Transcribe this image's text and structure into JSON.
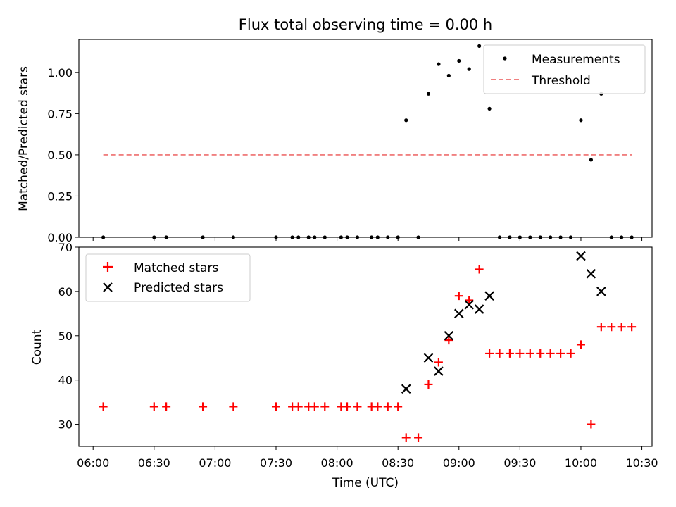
{
  "chart_data": [
    {
      "type": "scatter",
      "title": "Flux total observing time = 0.00 h",
      "xlabel": "",
      "ylabel": "Matched/Predicted stars",
      "xlim": [
        "05:53",
        "10:35"
      ],
      "ylim": [
        0,
        1.2
      ],
      "yticks": [
        0.0,
        0.25,
        0.5,
        0.75,
        1.0
      ],
      "ytick_labels": [
        "0.00",
        "0.25",
        "0.50",
        "0.75",
        "1.00"
      ],
      "xticks": [
        "06:00",
        "06:30",
        "07:00",
        "07:30",
        "08:00",
        "08:30",
        "09:00",
        "09:30",
        "10:00",
        "10:30"
      ],
      "legend_position": "top-right",
      "series": [
        {
          "name": "Measurements",
          "marker": "dot",
          "color": "#000000",
          "points": [
            [
              "06:05",
              0
            ],
            [
              "06:30",
              0
            ],
            [
              "06:36",
              0
            ],
            [
              "06:54",
              0
            ],
            [
              "07:09",
              0
            ],
            [
              "07:30",
              0
            ],
            [
              "07:38",
              0
            ],
            [
              "07:41",
              0
            ],
            [
              "07:46",
              0
            ],
            [
              "07:49",
              0
            ],
            [
              "07:54",
              0
            ],
            [
              "08:02",
              0
            ],
            [
              "08:05",
              0
            ],
            [
              "08:10",
              0
            ],
            [
              "08:17",
              0
            ],
            [
              "08:20",
              0
            ],
            [
              "08:25",
              0
            ],
            [
              "08:30",
              0
            ],
            [
              "08:34",
              0.71
            ],
            [
              "08:40",
              0
            ],
            [
              "08:45",
              0.87
            ],
            [
              "08:50",
              1.05
            ],
            [
              "08:55",
              0.98
            ],
            [
              "09:00",
              1.07
            ],
            [
              "09:05",
              1.02
            ],
            [
              "09:10",
              1.16
            ],
            [
              "09:15",
              0.78
            ],
            [
              "09:20",
              0
            ],
            [
              "09:25",
              0
            ],
            [
              "09:30",
              0
            ],
            [
              "09:35",
              0
            ],
            [
              "09:40",
              0
            ],
            [
              "09:45",
              0
            ],
            [
              "09:50",
              0
            ],
            [
              "09:55",
              0
            ],
            [
              "10:00",
              0.71
            ],
            [
              "10:05",
              0.47
            ],
            [
              "10:10",
              0.87
            ],
            [
              "10:15",
              0
            ],
            [
              "10:20",
              0
            ],
            [
              "10:25",
              0
            ]
          ]
        },
        {
          "name": "Threshold",
          "line_style": "dashed",
          "color": "#f08080",
          "points": [
            [
              "06:05",
              0.5
            ],
            [
              "10:25",
              0.5
            ]
          ]
        }
      ]
    },
    {
      "type": "scatter",
      "title": "",
      "xlabel": "Time (UTC)",
      "ylabel": "Count",
      "xlim": [
        "05:53",
        "10:35"
      ],
      "ylim": [
        25,
        70
      ],
      "yticks": [
        30,
        40,
        50,
        60,
        70
      ],
      "ytick_labels": [
        "30",
        "40",
        "50",
        "60",
        "70"
      ],
      "xticks": [
        "06:00",
        "06:30",
        "07:00",
        "07:30",
        "08:00",
        "08:30",
        "09:00",
        "09:30",
        "10:00",
        "10:30"
      ],
      "legend_position": "top-left",
      "series": [
        {
          "name": "Matched stars",
          "marker": "plus",
          "color": "#ff0000",
          "points": [
            [
              "06:05",
              34
            ],
            [
              "06:30",
              34
            ],
            [
              "06:36",
              34
            ],
            [
              "06:54",
              34
            ],
            [
              "07:09",
              34
            ],
            [
              "07:30",
              34
            ],
            [
              "07:38",
              34
            ],
            [
              "07:41",
              34
            ],
            [
              "07:46",
              34
            ],
            [
              "07:49",
              34
            ],
            [
              "07:54",
              34
            ],
            [
              "08:02",
              34
            ],
            [
              "08:05",
              34
            ],
            [
              "08:10",
              34
            ],
            [
              "08:17",
              34
            ],
            [
              "08:20",
              34
            ],
            [
              "08:25",
              34
            ],
            [
              "08:30",
              34
            ],
            [
              "08:34",
              27
            ],
            [
              "08:40",
              27
            ],
            [
              "08:45",
              39
            ],
            [
              "08:50",
              44
            ],
            [
              "08:55",
              49
            ],
            [
              "09:00",
              59
            ],
            [
              "09:05",
              58
            ],
            [
              "09:10",
              65
            ],
            [
              "09:15",
              46
            ],
            [
              "09:20",
              46
            ],
            [
              "09:25",
              46
            ],
            [
              "09:30",
              46
            ],
            [
              "09:35",
              46
            ],
            [
              "09:40",
              46
            ],
            [
              "09:45",
              46
            ],
            [
              "09:50",
              46
            ],
            [
              "09:55",
              46
            ],
            [
              "10:00",
              48
            ],
            [
              "10:05",
              30
            ],
            [
              "10:10",
              52
            ],
            [
              "10:15",
              52
            ],
            [
              "10:20",
              52
            ],
            [
              "10:25",
              52
            ]
          ]
        },
        {
          "name": "Predicted stars",
          "marker": "x",
          "color": "#000000",
          "points": [
            [
              "08:34",
              38
            ],
            [
              "08:45",
              45
            ],
            [
              "08:50",
              42
            ],
            [
              "08:55",
              50
            ],
            [
              "09:00",
              55
            ],
            [
              "09:05",
              57
            ],
            [
              "09:10",
              56
            ],
            [
              "09:15",
              59
            ],
            [
              "10:00",
              68
            ],
            [
              "10:05",
              64
            ],
            [
              "10:10",
              60
            ]
          ]
        }
      ]
    }
  ]
}
